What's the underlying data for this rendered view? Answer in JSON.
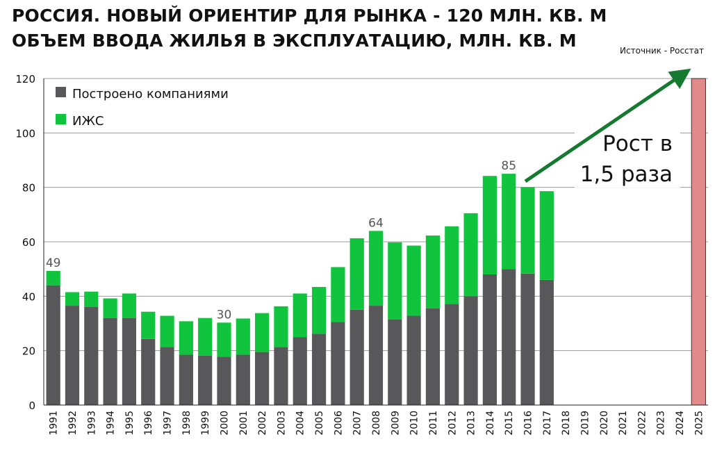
{
  "header": {
    "title_line1": "РОССИЯ. НОВЫЙ ОРИЕНТИР ДЛЯ РЫНКА - 120 МЛН. КВ. М",
    "title_line2": "ОБЪЕМ ВВОДА  ЖИЛЬЯ В ЭКСПЛУАТАЦИЮ, МЛН. КВ. М",
    "source": "Источник - Росстат"
  },
  "colors": {
    "companies": "#58585a",
    "izhs": "#11c43e",
    "target": "#e08a8a",
    "arrow": "#157a30",
    "grid": "#9a9a9a"
  },
  "chart_data": {
    "type": "bar",
    "stacked": true,
    "title": "ОБЪЕМ ВВОДА  ЖИЛЬЯ В ЭКСПЛУАТАЦИЮ, МЛН. КВ. М",
    "ylim": [
      0,
      120
    ],
    "yticks": [
      0,
      20,
      40,
      60,
      80,
      100,
      120
    ],
    "grid": true,
    "legend_position": "top-left",
    "categories": [
      "1991",
      "1992",
      "1993",
      "1994",
      "1995",
      "1996",
      "1997",
      "1998",
      "1999",
      "2000",
      "2001",
      "2002",
      "2003",
      "2004",
      "2005",
      "2006",
      "2007",
      "2008",
      "2009",
      "2010",
      "2011",
      "2012",
      "2013",
      "2014",
      "2015",
      "2016",
      "2017",
      "2018",
      "2019",
      "2020",
      "2021",
      "2022",
      "2023",
      "2024",
      "2025"
    ],
    "series": [
      {
        "name": "Построено компаниями",
        "values": [
          44,
          36.5,
          36,
          32,
          32,
          24.3,
          21.3,
          18.5,
          18.2,
          17.8,
          18.5,
          19.5,
          21.3,
          25,
          26.2,
          30.5,
          35,
          36.5,
          31.5,
          32.8,
          35.5,
          37.2,
          40,
          48,
          50,
          48.3,
          46,
          null,
          null,
          null,
          null,
          null,
          null,
          null,
          null
        ]
      },
      {
        "name": "ИЖС",
        "values": [
          5.3,
          5,
          5.7,
          7.2,
          9,
          10,
          11.5,
          12.3,
          13.8,
          12.5,
          13.3,
          14.3,
          15,
          16,
          17.2,
          20.2,
          26.3,
          27.5,
          28.3,
          25.8,
          26.8,
          28.5,
          30.5,
          36.2,
          35,
          31.8,
          32.6,
          null,
          null,
          null,
          null,
          null,
          null,
          null,
          null
        ]
      }
    ],
    "target": {
      "category": "2025",
      "value": 120
    },
    "data_labels": [
      {
        "category": "1991",
        "text": "49"
      },
      {
        "category": "2000",
        "text": "30"
      },
      {
        "category": "2008",
        "text": "64"
      },
      {
        "category": "2015",
        "text": "85"
      }
    ],
    "annotation": {
      "line1": "Рост в",
      "line2": "1,5 раза"
    }
  }
}
